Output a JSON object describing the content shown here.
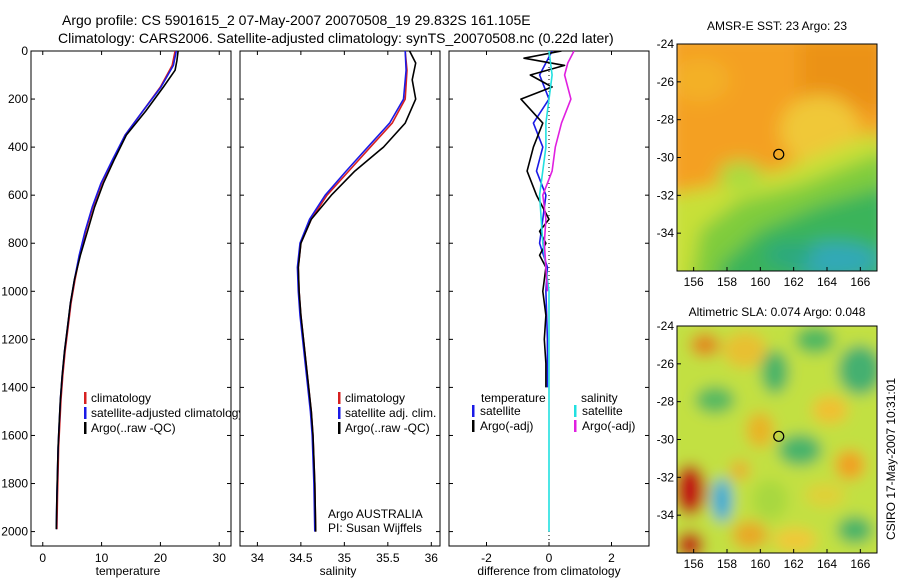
{
  "header": {
    "title_line1": "Argo profile: CS 5901615_2 07-May-2007 20070508_19 29.832S 161.105E",
    "title_line2": "Climatology: CARS2006. Satellite-adjusted climatology: synTS_20070508.nc (0.22d later)"
  },
  "colors": {
    "climatology": "#d62020",
    "satellite": "#1a1ae6",
    "argo": "#000000",
    "diff_temp_sat": "#1a1ae6",
    "diff_temp_argo": "#000000",
    "diff_sal_sat": "#22e0e0",
    "diff_sal_argo": "#e020e0"
  },
  "chart_data": [
    {
      "type": "line",
      "id": "temperature",
      "xlabel": "temperature",
      "xlim": [
        -2,
        32
      ],
      "ylim": [
        2060,
        0
      ],
      "xticks": [
        0,
        10,
        20,
        30
      ],
      "yticks": [
        0,
        200,
        400,
        600,
        800,
        1000,
        1200,
        1400,
        1600,
        1800,
        2000
      ],
      "legend": [
        "climatology",
        "satellite-adjusted climatology",
        "Argo(..raw -QC)"
      ],
      "series": [
        {
          "name": "climatology",
          "color": "#d62020",
          "x": [
            22.5,
            22.0,
            20.0,
            17.0,
            14.0,
            12.0,
            10.0,
            8.5,
            7.3,
            6.3,
            5.5,
            4.8,
            4.3,
            3.8,
            3.4,
            3.1,
            2.9,
            2.7,
            2.6,
            2.5,
            2.4
          ],
          "y": [
            0,
            60,
            150,
            250,
            350,
            450,
            550,
            650,
            750,
            850,
            950,
            1050,
            1150,
            1250,
            1350,
            1450,
            1550,
            1650,
            1750,
            1850,
            1990
          ]
        },
        {
          "name": "satellite-adjusted climatology",
          "color": "#1a1ae6",
          "x": [
            22.7,
            22.2,
            20.1,
            17.0,
            14.0,
            11.9,
            9.9,
            8.4,
            7.2,
            6.2,
            5.4,
            4.7,
            4.2,
            3.7,
            3.3,
            3.0,
            2.8,
            2.6,
            2.5,
            2.4,
            2.3
          ],
          "y": [
            0,
            60,
            150,
            250,
            350,
            450,
            550,
            650,
            750,
            850,
            950,
            1050,
            1150,
            1250,
            1350,
            1450,
            1550,
            1650,
            1750,
            1850,
            1990
          ]
        },
        {
          "name": "Argo(..raw -QC)",
          "color": "#000000",
          "x": [
            23.0,
            22.8,
            22.5,
            20.5,
            17.5,
            14.2,
            12.2,
            10.3,
            8.8,
            7.6,
            6.4,
            5.4,
            4.7,
            4.2,
            3.7,
            3.3,
            3.0,
            2.8,
            2.6,
            2.5,
            2.4,
            2.3
          ],
          "y": [
            0,
            40,
            80,
            150,
            250,
            350,
            450,
            550,
            650,
            750,
            850,
            950,
            1050,
            1150,
            1250,
            1350,
            1450,
            1550,
            1650,
            1750,
            1850,
            1990
          ]
        }
      ]
    },
    {
      "type": "line",
      "id": "salinity",
      "xlabel": "salinity",
      "xlim": [
        33.8,
        36.1
      ],
      "ylim": [
        2060,
        0
      ],
      "xticks": [
        34,
        34.5,
        35,
        35.5,
        36
      ],
      "yticks": [
        0,
        200,
        400,
        600,
        800,
        1000,
        1200,
        1400,
        1600,
        1800,
        2000
      ],
      "legend": [
        "climatology",
        "satellite adj. clim.",
        "Argo(..raw -QC)"
      ],
      "annotation": [
        "Argo AUSTRALIA",
        "PI: Susan Wijffels"
      ],
      "series": [
        {
          "name": "climatology",
          "color": "#d62020",
          "x": [
            35.7,
            35.72,
            35.7,
            35.55,
            35.3,
            35.05,
            34.8,
            34.62,
            34.5,
            34.47,
            34.48,
            34.5,
            34.53,
            34.56,
            34.59,
            34.62,
            34.64,
            34.66,
            34.67
          ],
          "y": [
            0,
            80,
            200,
            300,
            400,
            500,
            600,
            700,
            800,
            900,
            1000,
            1100,
            1200,
            1300,
            1400,
            1500,
            1600,
            1800,
            2000
          ]
        },
        {
          "name": "satellite adj. clim.",
          "color": "#1a1ae6",
          "x": [
            35.7,
            35.71,
            35.68,
            35.52,
            35.27,
            35.02,
            34.78,
            34.6,
            34.49,
            34.46,
            34.47,
            34.49,
            34.52,
            34.55,
            34.58,
            34.61,
            34.63,
            34.65,
            34.66
          ],
          "y": [
            0,
            80,
            200,
            300,
            400,
            500,
            600,
            700,
            800,
            900,
            1000,
            1100,
            1200,
            1300,
            1400,
            1500,
            1600,
            1800,
            2000
          ]
        },
        {
          "name": "Argo(..raw -QC)",
          "color": "#000000",
          "x": [
            35.75,
            35.82,
            35.78,
            35.82,
            35.7,
            35.45,
            35.12,
            34.85,
            34.62,
            34.5,
            34.47,
            34.48,
            34.5,
            34.53,
            34.56,
            34.59,
            34.62,
            34.64,
            34.66,
            34.67
          ],
          "y": [
            0,
            50,
            120,
            200,
            300,
            400,
            500,
            600,
            700,
            800,
            900,
            1000,
            1100,
            1200,
            1300,
            1400,
            1500,
            1600,
            1800,
            2000
          ]
        }
      ]
    },
    {
      "type": "line",
      "id": "difference",
      "xlabel": "difference from climatology",
      "xlim": [
        -3.2,
        3.2
      ],
      "ylim": [
        2060,
        0
      ],
      "xticks": [
        -2,
        0,
        2
      ],
      "yticks": [
        0,
        200,
        400,
        600,
        800,
        1000,
        1200,
        1400,
        1600,
        1800,
        2000
      ],
      "legend_left_header": "temperature",
      "legend_right_header": "salinity",
      "legend_left": [
        "satellite",
        "Argo(-adj)"
      ],
      "legend_right": [
        "satellite",
        "Argo(-adj)"
      ],
      "series": [
        {
          "name": "temperature satellite",
          "color": "#1a1ae6",
          "x": [
            0.1,
            -0.3,
            0.0,
            -0.5,
            -0.2,
            -0.4,
            -0.1,
            -0.2,
            -0.3,
            -0.05,
            -0.1,
            -0.05,
            -0.05
          ],
          "y": [
            0,
            100,
            200,
            300,
            400,
            500,
            600,
            700,
            800,
            900,
            1000,
            1200,
            1400
          ]
        },
        {
          "name": "temperature Argo(-adj)",
          "color": "#000000",
          "x": [
            0.4,
            -0.8,
            0.5,
            -0.6,
            0.1,
            -0.9,
            -0.2,
            -0.5,
            -0.7,
            -0.4,
            0.0,
            -0.3,
            -0.1,
            -0.3,
            -0.1,
            -0.2,
            -0.1,
            -0.15,
            -0.1,
            -0.1
          ],
          "y": [
            0,
            30,
            60,
            100,
            150,
            200,
            300,
            400,
            500,
            600,
            700,
            750,
            800,
            850,
            900,
            1000,
            1100,
            1200,
            1300,
            1400
          ]
        },
        {
          "name": "salinity satellite",
          "color": "#22e0e0",
          "x": [
            0.0,
            0.1,
            0.0,
            -0.1,
            -0.1,
            -0.3,
            -0.2,
            0.0,
            0.0,
            0.0,
            0.0
          ],
          "y": [
            0,
            100,
            200,
            300,
            400,
            600,
            800,
            1000,
            1200,
            1400,
            2000
          ]
        },
        {
          "name": "salinity Argo(-adj)",
          "color": "#e020e0",
          "x": [
            0.8,
            0.6,
            0.5,
            0.7,
            0.4,
            0.2,
            0.1,
            -0.2,
            -0.1,
            -0.15,
            -0.1,
            -0.05
          ],
          "y": [
            0,
            50,
            100,
            200,
            300,
            400,
            500,
            600,
            700,
            800,
            900,
            1000
          ]
        }
      ]
    },
    {
      "type": "heatmap",
      "id": "sst-map",
      "title": "AMSR-E SST: 23 Argo: 23",
      "xlim": [
        155,
        167
      ],
      "ylim": [
        -36,
        -24
      ],
      "xticks": [
        156,
        158,
        160,
        162,
        164,
        166
      ],
      "yticks": [
        -24,
        -26,
        -28,
        -30,
        -32,
        -34
      ],
      "marker": {
        "lon": 161.105,
        "lat": -29.832
      }
    },
    {
      "type": "heatmap",
      "id": "sla-map",
      "title": "Altimetric SLA: 0.074 Argo: 0.048",
      "xlim": [
        155,
        167
      ],
      "ylim": [
        -36,
        -24
      ],
      "xticks": [
        156,
        158,
        160,
        162,
        164,
        166
      ],
      "yticks": [
        -24,
        -26,
        -28,
        -30,
        -32,
        -34
      ],
      "marker": {
        "lon": 161.105,
        "lat": -29.832
      }
    }
  ],
  "footer": {
    "stamp": "CSIRO 17-May-2007 10:31:01"
  }
}
